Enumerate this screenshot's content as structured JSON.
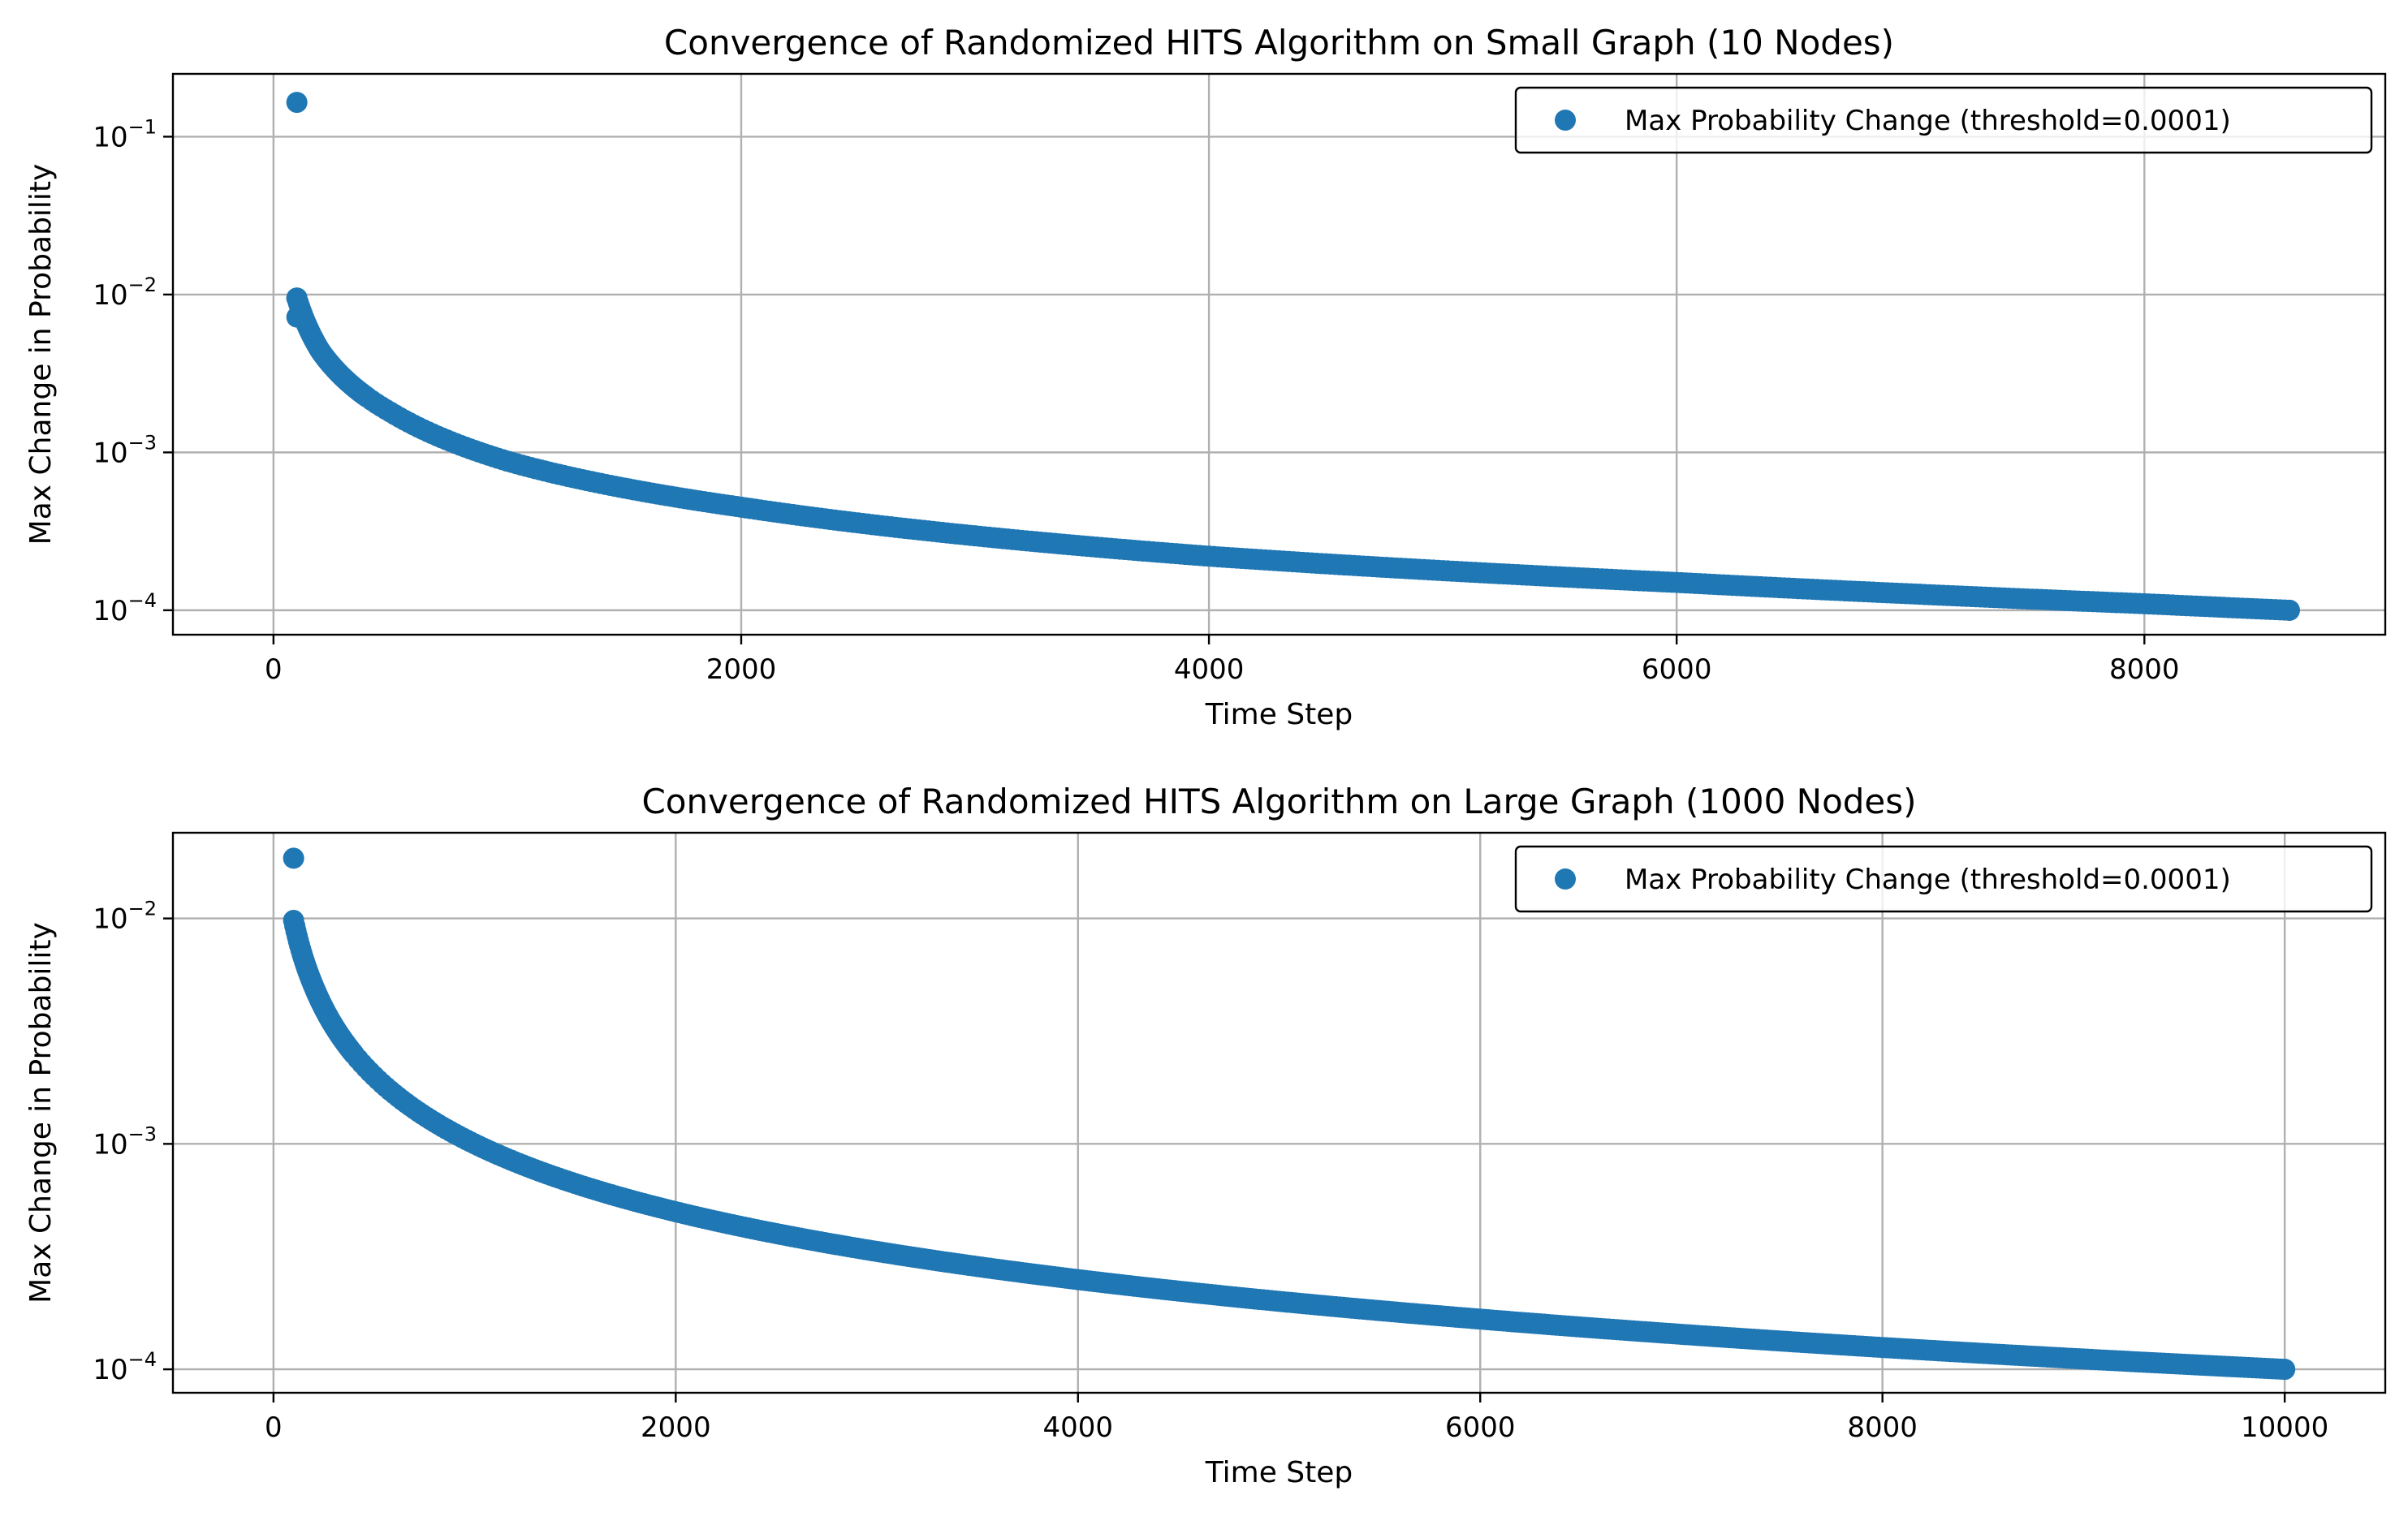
{
  "chart_data": [
    {
      "type": "scatter",
      "title": "Convergence of Randomized HITS Algorithm on Small Graph (10 Nodes)",
      "xlabel": "Time Step",
      "ylabel": "Max Change in Probability",
      "xlim": [
        -430,
        9030
      ],
      "ylim": [
        7e-05,
        0.25
      ],
      "yscale": "log",
      "grid": true,
      "xticks": [
        0,
        2000,
        4000,
        6000,
        8000
      ],
      "xtick_labels": [
        "0",
        "2000",
        "4000",
        "6000",
        "8000"
      ],
      "yticks": [
        0.0001,
        0.001,
        0.01,
        0.1
      ],
      "ytick_labels": [
        {
          "base": "10",
          "exp": "−4"
        },
        {
          "base": "10",
          "exp": "−3"
        },
        {
          "base": "10",
          "exp": "−2"
        },
        {
          "base": "10",
          "exp": "−1"
        }
      ],
      "legend": {
        "position": "top-right"
      },
      "series": [
        {
          "name": "Max Probability Change (threshold=0.0001)",
          "color": "#1f77b4",
          "model": "y ≈ 0.86 / x",
          "x_range": [
            100,
            8620
          ],
          "outliers": [
            {
              "x": 100,
              "y": 0.165
            },
            {
              "x": 100,
              "y": 0.0095
            },
            {
              "x": 100,
              "y": 0.0072
            }
          ],
          "samples": [
            {
              "x": 100,
              "y": 0.0095
            },
            {
              "x": 200,
              "y": 0.0044
            },
            {
              "x": 500,
              "y": 0.0018
            },
            {
              "x": 1000,
              "y": 0.00088
            },
            {
              "x": 2000,
              "y": 0.00045
            },
            {
              "x": 4000,
              "y": 0.00022
            },
            {
              "x": 6000,
              "y": 0.00015
            },
            {
              "x": 8000,
              "y": 0.00011
            },
            {
              "x": 8620,
              "y": 0.0001
            }
          ]
        }
      ]
    },
    {
      "type": "scatter",
      "title": "Convergence of Randomized HITS Algorithm on Large Graph (1000 Nodes)",
      "xlabel": "Time Step",
      "ylabel": "Max Change in Probability",
      "xlim": [
        -500,
        10500
      ],
      "ylim": [
        7.87e-05,
        0.024
      ],
      "yscale": "log",
      "grid": true,
      "xticks": [
        0,
        2000,
        4000,
        6000,
        8000,
        10000
      ],
      "xtick_labels": [
        "0",
        "2000",
        "4000",
        "6000",
        "8000",
        "10000"
      ],
      "yticks": [
        0.0001,
        0.001,
        0.01
      ],
      "ytick_labels": [
        {
          "base": "10",
          "exp": "−4"
        },
        {
          "base": "10",
          "exp": "−3"
        },
        {
          "base": "10",
          "exp": "−2"
        }
      ],
      "legend": {
        "position": "top-right"
      },
      "series": [
        {
          "name": "Max Probability Change (threshold=0.0001)",
          "color": "#1f77b4",
          "model": "y ≈ 1.0 / x",
          "x_range": [
            100,
            10000
          ],
          "outliers": [
            {
              "x": 100,
              "y": 0.0185
            }
          ],
          "samples": [
            {
              "x": 100,
              "y": 0.0098
            },
            {
              "x": 200,
              "y": 0.005
            },
            {
              "x": 500,
              "y": 0.002
            },
            {
              "x": 1000,
              "y": 0.001
            },
            {
              "x": 2000,
              "y": 0.0005
            },
            {
              "x": 4000,
              "y": 0.00025
            },
            {
              "x": 6000,
              "y": 0.000167
            },
            {
              "x": 8000,
              "y": 0.000125
            },
            {
              "x": 10000,
              "y": 0.0001
            }
          ]
        }
      ]
    }
  ]
}
